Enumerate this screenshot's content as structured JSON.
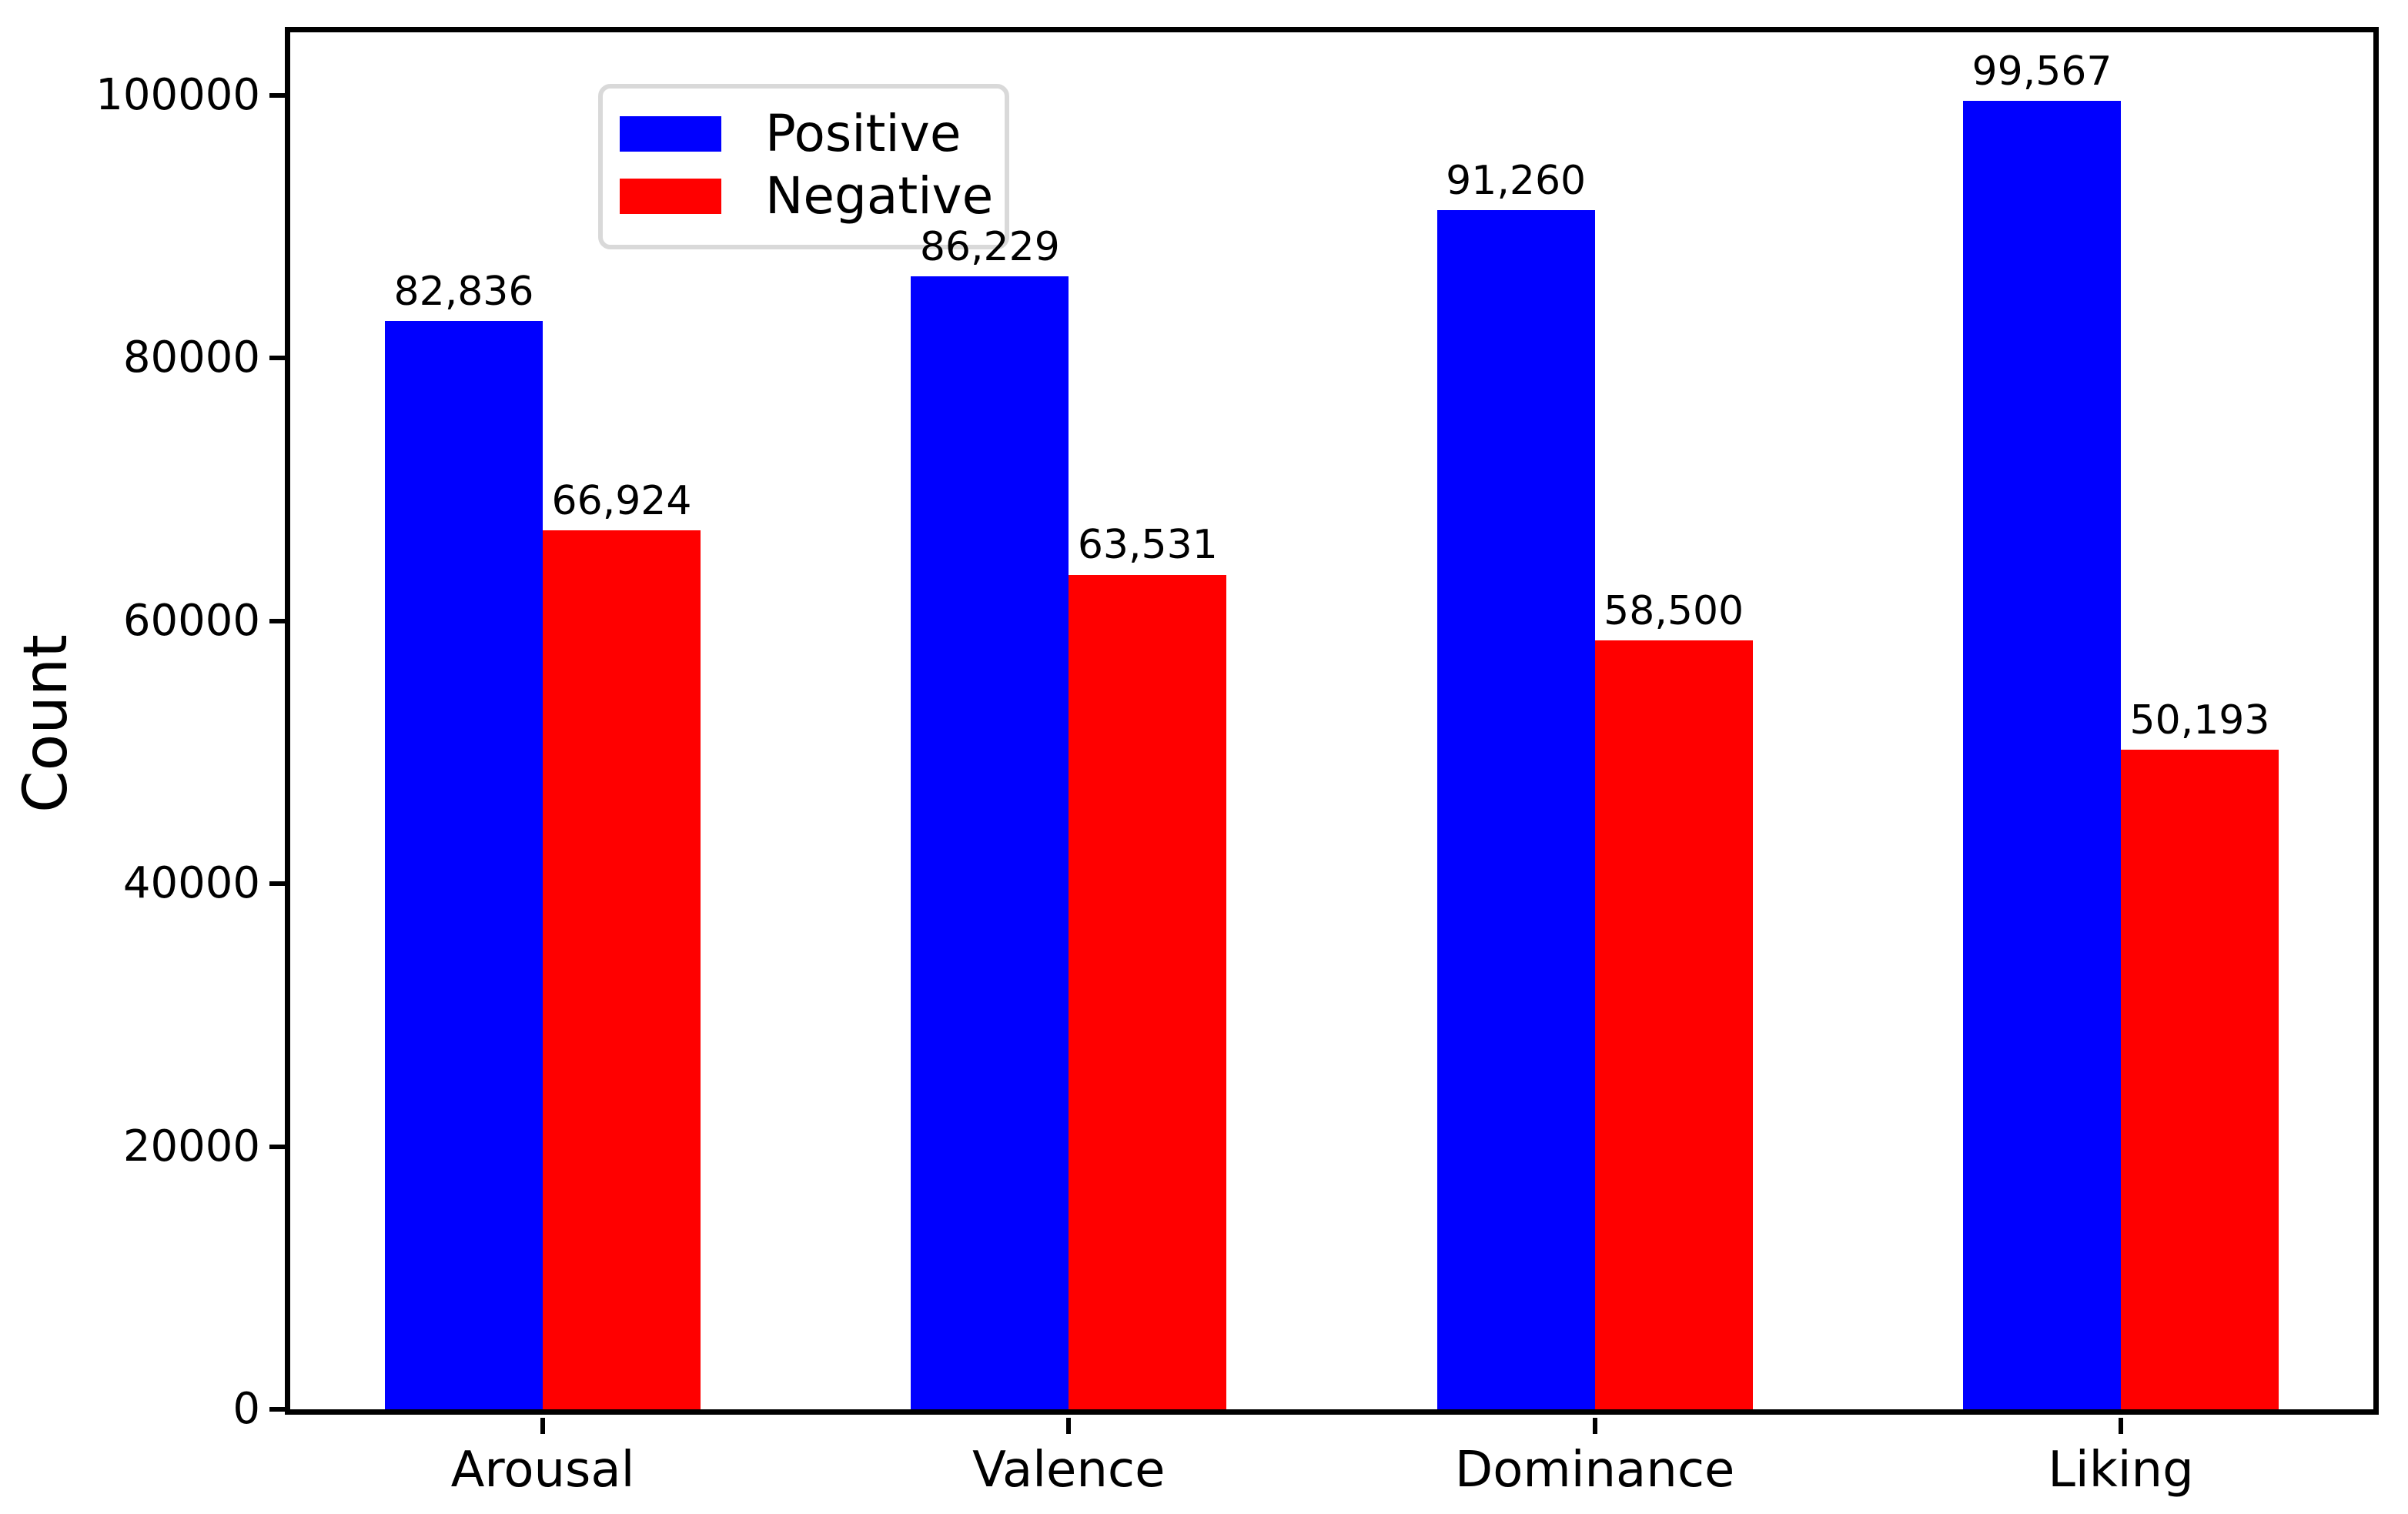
{
  "chart_data": {
    "type": "bar",
    "title": "",
    "xlabel": "",
    "ylabel": "Count",
    "categories": [
      "Arousal",
      "Valence",
      "Dominance",
      "Liking"
    ],
    "series": [
      {
        "name": "Positive",
        "color": "#0000ff",
        "values": [
          82836,
          86229,
          91260,
          99567
        ],
        "value_labels": [
          "82,836",
          "86,229",
          "91,260",
          "99,567"
        ]
      },
      {
        "name": "Negative",
        "color": "#ff0000",
        "values": [
          66924,
          63531,
          58500,
          50193
        ],
        "value_labels": [
          "66,924",
          "63,531",
          "58,500",
          "50,193"
        ]
      }
    ],
    "y_ticks": [
      0,
      20000,
      40000,
      60000,
      80000,
      100000
    ],
    "y_tick_labels": [
      "0",
      "20000",
      "40000",
      "60000",
      "80000",
      "100000"
    ],
    "ylim": [
      0,
      104800
    ],
    "xlim": [
      -0.48,
      3.48
    ],
    "bar_width": 0.3,
    "bar_group_offset": 0.15,
    "grid": false,
    "legend_position": "upper left",
    "spine_color": "#000000",
    "background_color": "#ffffff",
    "text_color": "#000000"
  }
}
